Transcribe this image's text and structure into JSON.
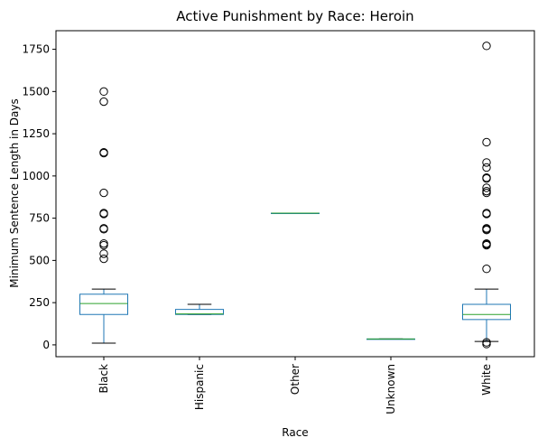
{
  "chart_data": {
    "type": "box",
    "title": "Active Punishment by Race: Heroin",
    "xlabel": "Race",
    "ylabel": "Minimum Sentence Length in Days",
    "ylim": [
      -70,
      1860
    ],
    "yticks": [
      0,
      250,
      500,
      750,
      1000,
      1250,
      1500,
      1750
    ],
    "grid": false,
    "colors": {
      "box": "#1f77b4",
      "median": "#2ca02c",
      "flier": "#000000"
    },
    "categories": [
      "Black",
      "Hispanic",
      "Other",
      "Unknown",
      "White"
    ],
    "boxes": [
      {
        "category": "Black",
        "whisker_low": 10,
        "q1": 180,
        "median": 245,
        "q3": 300,
        "whisker_high": 330,
        "outliers": [
          1500,
          1440,
          1140,
          1135,
          900,
          780,
          775,
          690,
          685,
          600,
          590,
          540,
          510
        ]
      },
      {
        "category": "Hispanic",
        "whisker_low": 180,
        "q1": 180,
        "median": 183,
        "q3": 210,
        "whisker_high": 240,
        "outliers": []
      },
      {
        "category": "Other",
        "whisker_low": 780,
        "q1": 780,
        "median": 780,
        "q3": 780,
        "whisker_high": 780,
        "outliers": []
      },
      {
        "category": "Unknown",
        "whisker_low": 35,
        "q1": 35,
        "median": 35,
        "q3": 35,
        "whisker_high": 35,
        "outliers": []
      },
      {
        "category": "White",
        "whisker_low": 20,
        "q1": 150,
        "median": 180,
        "q3": 240,
        "whisker_high": 330,
        "outliers": [
          1770,
          1200,
          1080,
          1050,
          990,
          985,
          930,
          910,
          900,
          780,
          775,
          690,
          685,
          680,
          600,
          595,
          590,
          450,
          15,
          5
        ]
      }
    ]
  }
}
